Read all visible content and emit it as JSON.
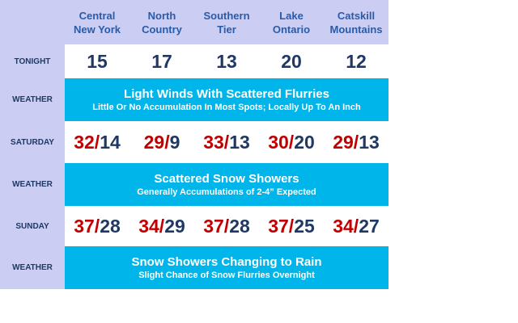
{
  "columns": [
    [
      "Central",
      "New York"
    ],
    [
      "North",
      "Country"
    ],
    [
      "Southern",
      "Tier"
    ],
    [
      "Lake",
      "Ontario"
    ],
    [
      "Catskill",
      "Mountains"
    ]
  ],
  "separator": "/",
  "rows": [
    {
      "label": "TONIGHT",
      "values": [
        15,
        17,
        13,
        20,
        12
      ]
    },
    {
      "label": "WEATHER",
      "headline": "Light Winds With Scattered Flurries",
      "detail": "Little Or No Accumulation In Most Spots; Locally Up To An Inch"
    },
    {
      "label": "SATURDAY",
      "high": [
        32,
        29,
        33,
        30,
        29
      ],
      "low": [
        14,
        9,
        13,
        20,
        13
      ]
    },
    {
      "label": "WEATHER",
      "headline": "Scattered Snow Showers",
      "detail": "Generally Accumulations of 2-4” Expected"
    },
    {
      "label": "SUNDAY",
      "high": [
        37,
        34,
        37,
        37,
        34
      ],
      "low": [
        28,
        29,
        28,
        25,
        27
      ]
    },
    {
      "label": "WEATHER",
      "headline": "Snow Showers Changing to Rain",
      "detail": "Slight Chance of Snow Flurries Overnight"
    }
  ]
}
